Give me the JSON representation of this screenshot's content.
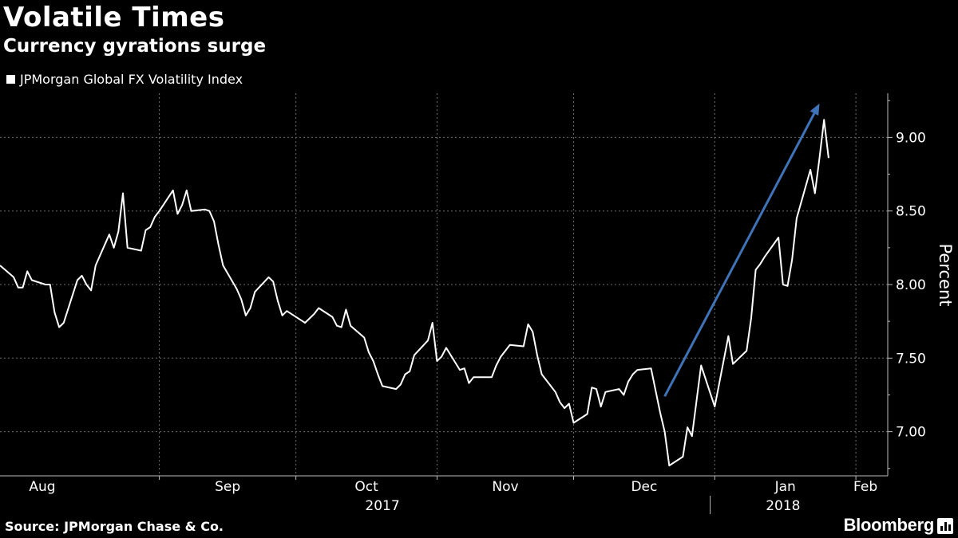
{
  "header": {
    "title": "Volatile Times",
    "subtitle": "Currency gyrations surge"
  },
  "legend": {
    "label": "JPMorgan Global FX Volatility Index"
  },
  "footer": {
    "source": "Source: JPMorgan Chase & Co.",
    "brand": "Bloomberg"
  },
  "colors": {
    "background": "#000000",
    "series": "#ffffff",
    "arrow": "#3f73b7",
    "grid": "#6e6e6e"
  },
  "chart_data": {
    "type": "line",
    "title": "Volatile Times",
    "subtitle": "Currency gyrations surge",
    "ylabel": "Percent",
    "ylim": [
      6.7,
      9.3
    ],
    "yticks": [
      7.0,
      7.5,
      8.0,
      8.5,
      9.0
    ],
    "ytick_labels": [
      "7.00",
      "7.50",
      "8.00",
      "8.50",
      "9.00"
    ],
    "xlim": [
      "2017-07-28",
      "2018-02-08"
    ],
    "month_ticks": [
      {
        "label": "Aug",
        "date": "2017-08-01"
      },
      {
        "label": "Sep",
        "date": "2017-09-01"
      },
      {
        "label": "Oct",
        "date": "2017-10-01"
      },
      {
        "label": "Nov",
        "date": "2017-11-01"
      },
      {
        "label": "Dec",
        "date": "2017-12-01"
      },
      {
        "label": "Jan",
        "date": "2018-01-01"
      },
      {
        "label": "Feb",
        "date": "2018-02-01"
      }
    ],
    "year_labels": [
      {
        "label": "2017",
        "date": "2017-10-20"
      },
      {
        "label": "2018",
        "date": "2018-01-16"
      }
    ],
    "year_divider": "2017-12-31",
    "grid": true,
    "series": [
      {
        "name": "JPMorgan Global FX Volatility Index",
        "points": [
          [
            "2017-07-28",
            8.13
          ],
          [
            "2017-07-31",
            8.05
          ],
          [
            "2017-08-01",
            7.98
          ],
          [
            "2017-08-02",
            7.98
          ],
          [
            "2017-08-03",
            8.09
          ],
          [
            "2017-08-04",
            8.03
          ],
          [
            "2017-08-07",
            8.0
          ],
          [
            "2017-08-08",
            8.0
          ],
          [
            "2017-08-09",
            7.81
          ],
          [
            "2017-08-10",
            7.71
          ],
          [
            "2017-08-11",
            7.74
          ],
          [
            "2017-08-14",
            8.03
          ],
          [
            "2017-08-15",
            8.06
          ],
          [
            "2017-08-16",
            8.0
          ],
          [
            "2017-08-17",
            7.96
          ],
          [
            "2017-08-18",
            8.13
          ],
          [
            "2017-08-21",
            8.34
          ],
          [
            "2017-08-22",
            8.25
          ],
          [
            "2017-08-23",
            8.36
          ],
          [
            "2017-08-24",
            8.62
          ],
          [
            "2017-08-25",
            8.25
          ],
          [
            "2017-08-28",
            8.23
          ],
          [
            "2017-08-29",
            8.37
          ],
          [
            "2017-08-30",
            8.39
          ],
          [
            "2017-08-31",
            8.46
          ],
          [
            "2017-09-01",
            8.5
          ],
          [
            "2017-09-04",
            8.64
          ],
          [
            "2017-09-05",
            8.48
          ],
          [
            "2017-09-06",
            8.54
          ],
          [
            "2017-09-07",
            8.64
          ],
          [
            "2017-09-08",
            8.5
          ],
          [
            "2017-09-11",
            8.51
          ],
          [
            "2017-09-12",
            8.5
          ],
          [
            "2017-09-13",
            8.43
          ],
          [
            "2017-09-14",
            8.27
          ],
          [
            "2017-09-15",
            8.13
          ],
          [
            "2017-09-18",
            7.97
          ],
          [
            "2017-09-19",
            7.9
          ],
          [
            "2017-09-20",
            7.79
          ],
          [
            "2017-09-21",
            7.84
          ],
          [
            "2017-09-22",
            7.95
          ],
          [
            "2017-09-25",
            8.05
          ],
          [
            "2017-09-26",
            8.02
          ],
          [
            "2017-09-27",
            7.89
          ],
          [
            "2017-09-28",
            7.79
          ],
          [
            "2017-09-29",
            7.82
          ],
          [
            "2017-10-02",
            7.76
          ],
          [
            "2017-10-03",
            7.74
          ],
          [
            "2017-10-04",
            7.77
          ],
          [
            "2017-10-05",
            7.8
          ],
          [
            "2017-10-06",
            7.84
          ],
          [
            "2017-10-09",
            7.78
          ],
          [
            "2017-10-10",
            7.72
          ],
          [
            "2017-10-11",
            7.71
          ],
          [
            "2017-10-12",
            7.83
          ],
          [
            "2017-10-13",
            7.72
          ],
          [
            "2017-10-16",
            7.64
          ],
          [
            "2017-10-17",
            7.54
          ],
          [
            "2017-10-18",
            7.48
          ],
          [
            "2017-10-19",
            7.39
          ],
          [
            "2017-10-20",
            7.31
          ],
          [
            "2017-10-23",
            7.29
          ],
          [
            "2017-10-24",
            7.32
          ],
          [
            "2017-10-25",
            7.39
          ],
          [
            "2017-10-26",
            7.41
          ],
          [
            "2017-10-27",
            7.52
          ],
          [
            "2017-10-30",
            7.62
          ],
          [
            "2017-10-31",
            7.74
          ],
          [
            "2017-11-01",
            7.48
          ],
          [
            "2017-11-02",
            7.51
          ],
          [
            "2017-11-03",
            7.57
          ],
          [
            "2017-11-06",
            7.42
          ],
          [
            "2017-11-07",
            7.43
          ],
          [
            "2017-11-08",
            7.33
          ],
          [
            "2017-11-09",
            7.37
          ],
          [
            "2017-11-10",
            7.37
          ],
          [
            "2017-11-13",
            7.37
          ],
          [
            "2017-11-14",
            7.45
          ],
          [
            "2017-11-15",
            7.51
          ],
          [
            "2017-11-16",
            7.55
          ],
          [
            "2017-11-17",
            7.59
          ],
          [
            "2017-11-20",
            7.58
          ],
          [
            "2017-11-21",
            7.73
          ],
          [
            "2017-11-22",
            7.68
          ],
          [
            "2017-11-23",
            7.52
          ],
          [
            "2017-11-24",
            7.39
          ],
          [
            "2017-11-27",
            7.27
          ],
          [
            "2017-11-28",
            7.2
          ],
          [
            "2017-11-29",
            7.16
          ],
          [
            "2017-11-30",
            7.19
          ],
          [
            "2017-12-01",
            7.06
          ],
          [
            "2017-12-04",
            7.12
          ],
          [
            "2017-12-05",
            7.3
          ],
          [
            "2017-12-06",
            7.29
          ],
          [
            "2017-12-07",
            7.17
          ],
          [
            "2017-12-08",
            7.27
          ],
          [
            "2017-12-11",
            7.29
          ],
          [
            "2017-12-12",
            7.25
          ],
          [
            "2017-12-13",
            7.34
          ],
          [
            "2017-12-14",
            7.39
          ],
          [
            "2017-12-15",
            7.42
          ],
          [
            "2017-12-18",
            7.43
          ],
          [
            "2017-12-19",
            7.28
          ],
          [
            "2017-12-20",
            7.13
          ],
          [
            "2017-12-21",
            7.0
          ],
          [
            "2017-12-22",
            6.77
          ],
          [
            "2017-12-25",
            6.83
          ],
          [
            "2017-12-26",
            7.03
          ],
          [
            "2017-12-27",
            6.97
          ],
          [
            "2017-12-28",
            7.21
          ],
          [
            "2017-12-29",
            7.45
          ],
          [
            "2018-01-01",
            7.17
          ],
          [
            "2018-01-02",
            7.33
          ],
          [
            "2018-01-03",
            7.49
          ],
          [
            "2018-01-04",
            7.65
          ],
          [
            "2018-01-05",
            7.46
          ],
          [
            "2018-01-08",
            7.55
          ],
          [
            "2018-01-09",
            7.77
          ],
          [
            "2018-01-10",
            8.1
          ],
          [
            "2018-01-11",
            8.14
          ],
          [
            "2018-01-12",
            8.19
          ],
          [
            "2018-01-15",
            8.32
          ],
          [
            "2018-01-16",
            8.0
          ],
          [
            "2018-01-17",
            7.99
          ],
          [
            "2018-01-18",
            8.17
          ],
          [
            "2018-01-19",
            8.45
          ],
          [
            "2018-01-22",
            8.78
          ],
          [
            "2018-01-23",
            8.62
          ],
          [
            "2018-01-24",
            8.86
          ],
          [
            "2018-01-25",
            9.12
          ],
          [
            "2018-01-26",
            8.86
          ]
        ]
      }
    ],
    "annotations": [
      {
        "type": "arrow",
        "from": [
          "2017-12-21",
          7.24
        ],
        "to": [
          "2018-01-24",
          9.23
        ]
      }
    ]
  }
}
